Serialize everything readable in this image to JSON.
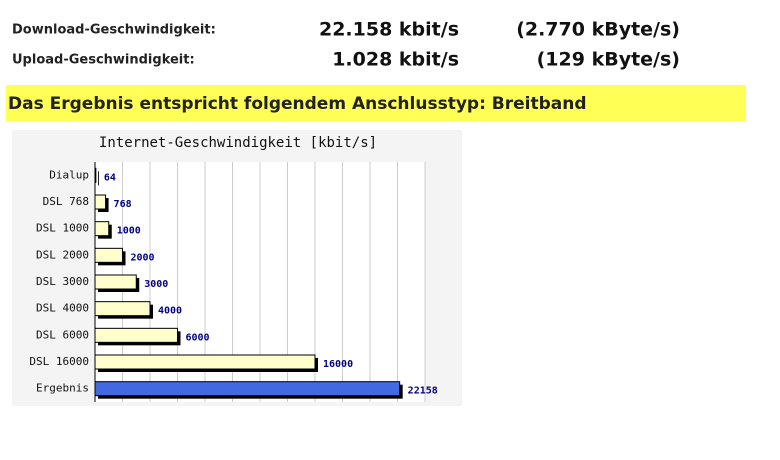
{
  "speed": {
    "rows": [
      {
        "label": "Download-Geschwindigkeit:",
        "kbit": "22.158 kbit/s",
        "kbyte": "(2.770 kByte/s)"
      },
      {
        "label": "Upload-Geschwindigkeit:",
        "kbit": "1.028 kbit/s",
        "kbyte": "(129 kByte/s)"
      }
    ]
  },
  "banner": "Das Ergebnis entspricht folgendem Anschlusstyp: Breitband",
  "chart_data": {
    "type": "bar",
    "orientation": "horizontal",
    "title": "Internet-Geschwindigkeit [kbit/s]",
    "categories": [
      "Dialup",
      "DSL 768",
      "DSL 1000",
      "DSL 2000",
      "DSL 3000",
      "DSL 4000",
      "DSL 6000",
      "DSL 16000",
      "Ergebnis"
    ],
    "values": [
      64,
      768,
      1000,
      2000,
      3000,
      4000,
      6000,
      16000,
      22158
    ],
    "colors": [
      "#ffffcc",
      "#ffffcc",
      "#ffffcc",
      "#ffffcc",
      "#ffffcc",
      "#ffffcc",
      "#ffffcc",
      "#ffffcc",
      "#4169e1"
    ],
    "xlim": [
      0,
      24000
    ],
    "xticks": [
      0,
      2000,
      4000,
      6000,
      8000,
      10000,
      12000,
      14000,
      16000,
      18000,
      20000,
      22000,
      24000
    ],
    "grid": true
  }
}
